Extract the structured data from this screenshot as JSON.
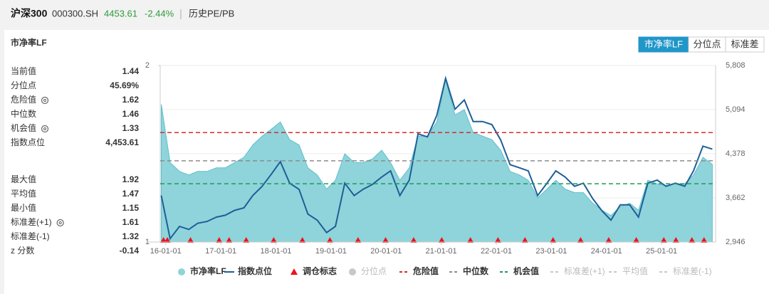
{
  "header": {
    "name": "沪深300",
    "code": "000300.SH",
    "price": "4453.61",
    "change": "-2.44%",
    "tab": "历史PE/PB"
  },
  "panel": {
    "title": "市净率LF",
    "buttons": [
      {
        "label": "市净率LF",
        "active": true
      },
      {
        "label": "分位点",
        "active": false
      },
      {
        "label": "标准差",
        "active": false
      }
    ]
  },
  "stats": {
    "rows": [
      {
        "label": "当前值",
        "value": "1.44",
        "gear": false
      },
      {
        "label": "分位点",
        "value": "45.69%",
        "gear": false
      },
      {
        "label": "危险值",
        "value": "1.62",
        "gear": true
      },
      {
        "label": "中位数",
        "value": "1.46",
        "gear": false
      },
      {
        "label": "机会值",
        "value": "1.33",
        "gear": true
      },
      {
        "label": "指数点位",
        "value": "4,453.61",
        "gear": false
      },
      {
        "label": "最大值",
        "value": "1.92",
        "gear": false
      },
      {
        "label": "平均值",
        "value": "1.47",
        "gear": false
      },
      {
        "label": "最小值",
        "value": "1.15",
        "gear": false
      },
      {
        "label": "标准差(+1)",
        "value": "1.61",
        "gear": true
      },
      {
        "label": "标准差(-1)",
        "value": "1.32",
        "gear": false
      },
      {
        "label": "z 分数",
        "value": "-0.14",
        "gear": false
      }
    ]
  },
  "chart_data": {
    "type": "line",
    "x": [
      2015.92,
      2016.08,
      2016.25,
      2016.42,
      2016.58,
      2016.75,
      2016.92,
      2017.08,
      2017.25,
      2017.42,
      2017.58,
      2017.75,
      2017.92,
      2018.08,
      2018.25,
      2018.42,
      2018.58,
      2018.75,
      2018.92,
      2019.08,
      2019.25,
      2019.42,
      2019.58,
      2019.75,
      2019.92,
      2020.08,
      2020.25,
      2020.42,
      2020.58,
      2020.75,
      2020.92,
      2021.08,
      2021.25,
      2021.42,
      2021.58,
      2021.75,
      2021.92,
      2022.08,
      2022.25,
      2022.42,
      2022.58,
      2022.75,
      2022.92,
      2023.08,
      2023.25,
      2023.42,
      2023.58,
      2023.75,
      2023.92,
      2024.08,
      2024.25,
      2024.42,
      2024.58,
      2024.75,
      2024.92,
      2025.08,
      2025.25,
      2025.42,
      2025.58,
      2025.75,
      2025.92
    ],
    "series": [
      {
        "name": "市净率LF",
        "color": "#8fd4db",
        "kind": "area",
        "values": [
          1.78,
          1.45,
          1.4,
          1.38,
          1.4,
          1.4,
          1.42,
          1.42,
          1.45,
          1.48,
          1.55,
          1.6,
          1.64,
          1.68,
          1.58,
          1.55,
          1.42,
          1.38,
          1.3,
          1.35,
          1.5,
          1.45,
          1.45,
          1.47,
          1.52,
          1.45,
          1.35,
          1.42,
          1.6,
          1.6,
          1.68,
          1.92,
          1.72,
          1.75,
          1.62,
          1.6,
          1.58,
          1.52,
          1.4,
          1.38,
          1.35,
          1.25,
          1.3,
          1.35,
          1.3,
          1.28,
          1.28,
          1.22,
          1.18,
          1.15,
          1.2,
          1.22,
          1.18,
          1.35,
          1.33,
          1.32,
          1.33,
          1.33,
          1.38,
          1.48,
          1.44
        ]
      },
      {
        "name": "指数点位",
        "color": "#1e5f96",
        "kind": "line",
        "axis": "y2",
        "values": [
          3700,
          3000,
          3200,
          3150,
          3250,
          3280,
          3350,
          3380,
          3460,
          3500,
          3700,
          3850,
          4050,
          4250,
          3900,
          3800,
          3400,
          3300,
          3100,
          3200,
          3900,
          3700,
          3800,
          3880,
          4000,
          4100,
          3700,
          3950,
          4700,
          4650,
          5000,
          5600,
          5100,
          5250,
          4900,
          4900,
          4850,
          4600,
          4200,
          4150,
          4100,
          3700,
          3900,
          4100,
          4000,
          3850,
          3900,
          3650,
          3450,
          3300,
          3550,
          3550,
          3350,
          3900,
          3950,
          3850,
          3900,
          3850,
          4100,
          4500,
          4453.61
        ]
      }
    ],
    "markers": {
      "name": "调仓标志",
      "color": "#e8141c",
      "x": [
        2015.96,
        2016.03,
        2016.45,
        2016.97,
        2017.15,
        2017.46,
        2017.96,
        2018.48,
        2018.98,
        2019.49,
        2019.99,
        2020.5,
        2021.01,
        2021.53,
        2022.03,
        2022.52,
        2023.03,
        2023.53,
        2024.04,
        2024.54,
        2025.04,
        2025.26,
        2025.55,
        2025.77
      ]
    },
    "reference_lines": [
      {
        "name": "分位点",
        "color": "#c8c8c8",
        "visible": false
      },
      {
        "name": "危险值",
        "color": "#d62b2b",
        "value": 1.62,
        "visible": true
      },
      {
        "name": "中位数",
        "color": "#8c8c8c",
        "value": 1.46,
        "visible": true
      },
      {
        "name": "机会值",
        "color": "#1f9a5a",
        "value": 1.33,
        "visible": true
      },
      {
        "name": "标准差(+1)",
        "color": "#c8c8c8",
        "visible": false
      },
      {
        "name": "平均值",
        "color": "#c8c8c8",
        "visible": false
      },
      {
        "name": "标准差(-1)",
        "color": "#c8c8c8",
        "visible": false
      }
    ],
    "xlim": [
      2015.9,
      2025.98
    ],
    "xticks": [
      {
        "value": 2016,
        "label": "16-01-01"
      },
      {
        "value": 2017,
        "label": "17-01-01"
      },
      {
        "value": 2018,
        "label": "18-01-01"
      },
      {
        "value": 2019,
        "label": "19-01-01"
      },
      {
        "value": 2020,
        "label": "20-01-01"
      },
      {
        "value": 2021,
        "label": "21-01-01"
      },
      {
        "value": 2022,
        "label": "22-01-01"
      },
      {
        "value": 2023,
        "label": "23-01-01"
      },
      {
        "value": 2024,
        "label": "24-01-01"
      },
      {
        "value": 2025,
        "label": "25-01-01"
      }
    ],
    "ylim": [
      1,
      2
    ],
    "yticks": [
      1,
      2
    ],
    "y2lim": [
      2946,
      5808
    ],
    "y2ticks": [
      {
        "value": 2946,
        "label": "2,946"
      },
      {
        "value": 3662,
        "label": "3,662"
      },
      {
        "value": 4378,
        "label": "4,378"
      },
      {
        "value": 5094,
        "label": "5,094"
      },
      {
        "value": 5808,
        "label": "5,808"
      }
    ],
    "grid": true
  }
}
